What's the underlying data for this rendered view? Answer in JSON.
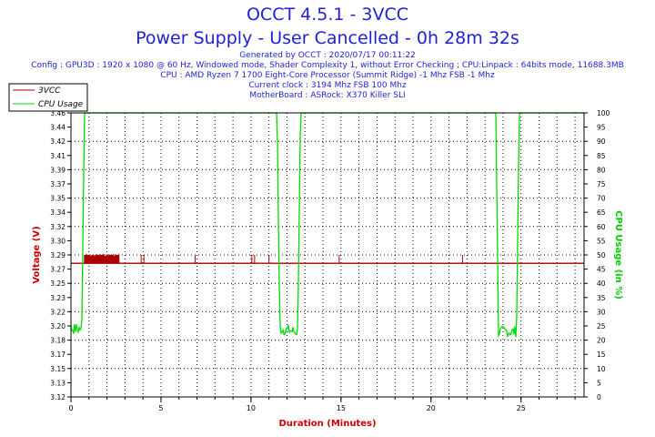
{
  "header": {
    "title": "OCCT 4.5.1 - 3VCC",
    "subtitle": "Power Supply - User Cancelled - 0h 28m 32s",
    "info": [
      "Generated by OCCT : 2020/07/17 00:11:22",
      "Config : GPU3D : 1920 x 1080 @ 60 Hz, Windowed mode, Shader Complexity 1, without Error Checking ; CPU:Linpack : 64bits mode, 11688.3MB",
      "CPU : AMD Ryzen 7 1700 Eight-Core Processor (Summit Ridge) -1 Mhz FSB -1 Mhz",
      "Current clock : 3194 Mhz FSB 100 Mhz",
      "MotherBoard : ASRock: X370 Killer SLI"
    ]
  },
  "chart_data": {
    "type": "line",
    "xlabel": "Duration (Minutes)",
    "ylabel": "Voltage (V)",
    "y2label": "CPU Usage (in %)",
    "xlim": [
      0,
      28.5
    ],
    "ylim": [
      3.12,
      3.46
    ],
    "y2lim": [
      0,
      100
    ],
    "x_ticks": [
      0,
      5,
      10,
      15,
      20,
      25
    ],
    "y_ticks": [
      3.12,
      3.13,
      3.15,
      3.17,
      3.18,
      3.2,
      3.22,
      3.23,
      3.25,
      3.27,
      3.29,
      3.3,
      3.32,
      3.34,
      3.35,
      3.37,
      3.39,
      3.41,
      3.42,
      3.44,
      3.46
    ],
    "y2_ticks": [
      0,
      5,
      10,
      15,
      20,
      25,
      30,
      35,
      40,
      45,
      50,
      55,
      60,
      65,
      70,
      75,
      80,
      85,
      90,
      95,
      100
    ],
    "grid": true,
    "legend": "top-left",
    "series": [
      {
        "name": "3VCC",
        "color": "#aa0000",
        "axis": "left",
        "baseline": 3.28,
        "x": [
          0,
          0.7,
          1.2,
          2.0,
          2.7,
          3.9,
          4.1,
          6.9,
          10.1,
          10.3,
          11.0,
          14.9,
          21.8,
          28.5
        ],
        "y": [
          3.28,
          3.28,
          3.29,
          3.29,
          3.28,
          3.28,
          3.28,
          3.28,
          3.28,
          3.28,
          3.28,
          3.28,
          3.28,
          3.28
        ],
        "spikes": {
          "dense_ranges": [
            [
              0.75,
              2.7
            ]
          ],
          "x": [
            3.9,
            4.05,
            6.9,
            10.05,
            10.2,
            11.0,
            14.9,
            21.75
          ],
          "peak": 3.29
        }
      },
      {
        "name": "CPU Usage",
        "color": "#00dd00",
        "axis": "right",
        "x": [
          0,
          0.45,
          0.6,
          0.75,
          11.3,
          11.45,
          11.6,
          12.5,
          12.6,
          12.75,
          23.45,
          23.6,
          23.75,
          24.6,
          24.75,
          24.9,
          28.5
        ],
        "y": [
          24,
          24,
          24,
          100,
          100,
          100,
          24,
          23,
          23,
          100,
          100,
          100,
          23,
          23,
          23,
          100,
          100
        ],
        "noise_ranges": [
          [
            0.0,
            0.55
          ],
          [
            11.55,
            12.6
          ],
          [
            23.7,
            24.75
          ]
        ]
      }
    ]
  }
}
